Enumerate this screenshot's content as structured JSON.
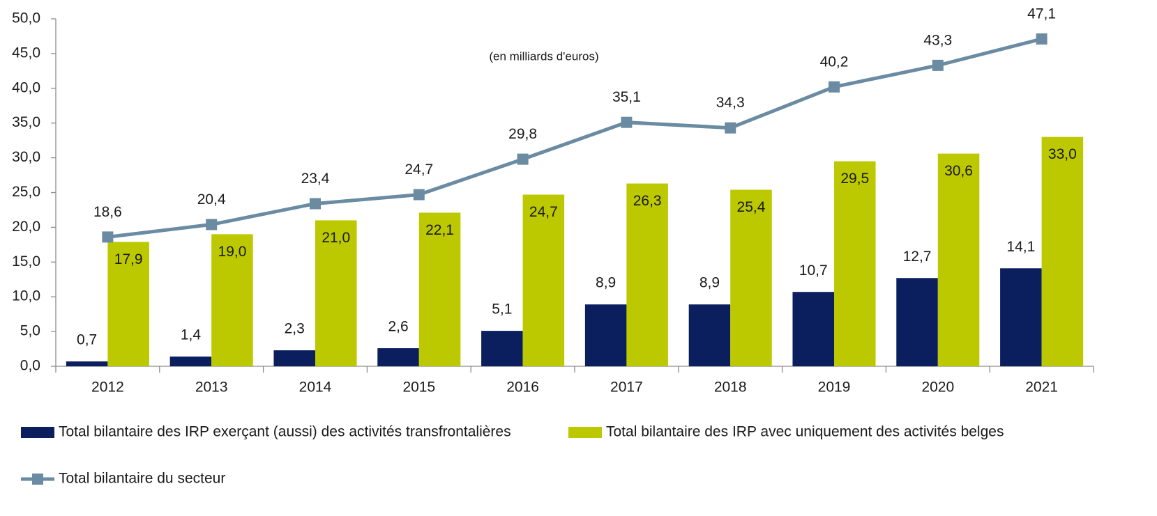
{
  "chart_data": {
    "type": "bar",
    "subtitle": "(en milliards d'euros)",
    "categories": [
      "2012",
      "2013",
      "2014",
      "2015",
      "2016",
      "2017",
      "2018",
      "2019",
      "2020",
      "2021"
    ],
    "series": [
      {
        "name": "Total bilantaire des IRP exerçant (aussi) des activités transfrontalières",
        "color": "#0b1f5e",
        "type": "bar",
        "values": [
          0.7,
          1.4,
          2.3,
          2.6,
          5.1,
          8.9,
          8.9,
          10.7,
          12.7,
          14.1
        ],
        "value_labels": [
          "0,7",
          "1,4",
          "2,3",
          "2,6",
          "5,1",
          "8,9",
          "8,9",
          "10,7",
          "12,7",
          "14,1"
        ]
      },
      {
        "name": "Total bilantaire des IRP avec uniquement des activités belges",
        "color": "#bdc900",
        "type": "bar",
        "values": [
          17.9,
          19.0,
          21.0,
          22.1,
          24.7,
          26.3,
          25.4,
          29.5,
          30.6,
          33.0
        ],
        "value_labels": [
          "17,9",
          "19,0",
          "21,0",
          "22,1",
          "24,7",
          "26,3",
          "25,4",
          "29,5",
          "30,6",
          "33,0"
        ]
      },
      {
        "name": "Total bilantaire du secteur",
        "color": "#6a8ba1",
        "type": "line",
        "values": [
          18.6,
          20.4,
          23.4,
          24.7,
          29.8,
          35.1,
          34.3,
          40.2,
          43.3,
          47.1
        ],
        "value_labels": [
          "18,6",
          "20,4",
          "23,4",
          "24,7",
          "29,8",
          "35,1",
          "34,3",
          "40,2",
          "43,3",
          "47,1"
        ]
      }
    ],
    "ylim": [
      0,
      50
    ],
    "yticks": [
      {
        "value": 0,
        "label": "0,0"
      },
      {
        "value": 5,
        "label": "5,0"
      },
      {
        "value": 10,
        "label": "10,0"
      },
      {
        "value": 15,
        "label": "15,0"
      },
      {
        "value": 20,
        "label": "20,0"
      },
      {
        "value": 25,
        "label": "25,0"
      },
      {
        "value": 30,
        "label": "30,0"
      },
      {
        "value": 35,
        "label": "35,0"
      },
      {
        "value": 40,
        "label": "40,0"
      },
      {
        "value": 45,
        "label": "45,0"
      },
      {
        "value": 50,
        "label": "50,0"
      }
    ],
    "grid": false,
    "legend": "bottom"
  }
}
